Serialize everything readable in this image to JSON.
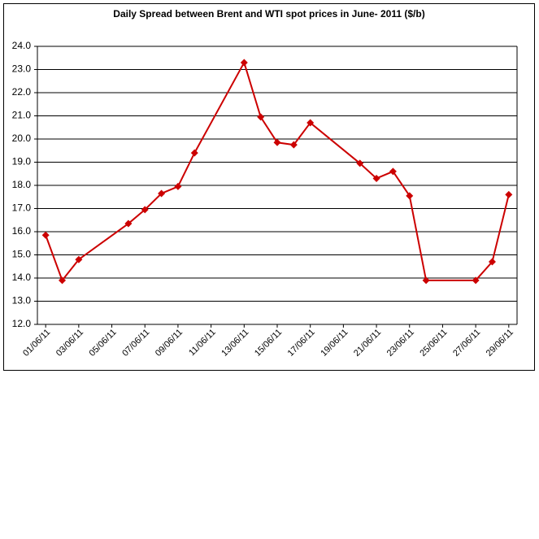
{
  "chart_data": {
    "type": "line",
    "title": "Daily Spread between Brent and WTI spot prices in June- 2011 ($/b)",
    "x": [
      "01/06/11",
      "02/06/11",
      "03/06/11",
      "06/06/11",
      "07/06/11",
      "08/06/11",
      "09/06/11",
      "10/06/11",
      "13/06/11",
      "14/06/11",
      "15/06/11",
      "16/06/11",
      "17/06/11",
      "20/06/11",
      "21/06/11",
      "22/06/11",
      "23/06/11",
      "24/06/11",
      "27/06/11",
      "28/06/11",
      "29/06/11"
    ],
    "values": [
      15.85,
      13.9,
      14.8,
      16.35,
      16.95,
      17.65,
      17.95,
      19.4,
      23.3,
      20.95,
      19.85,
      19.75,
      20.7,
      18.95,
      18.3,
      18.6,
      17.55,
      13.9,
      13.9,
      14.7,
      17.6
    ],
    "color": "#cc0000",
    "xlim": [
      "01/06/11",
      "29/06/11"
    ],
    "xticks": [
      "01/06/11",
      "03/06/11",
      "05/06/11",
      "07/06/11",
      "09/06/11",
      "11/06/11",
      "13/06/11",
      "15/06/11",
      "17/06/11",
      "19/06/11",
      "21/06/11",
      "23/06/11",
      "25/06/11",
      "27/06/11",
      "29/06/11"
    ],
    "ylim": [
      12,
      24
    ],
    "yticks": [
      {
        "value": 12,
        "label": "12.0"
      },
      {
        "value": 13,
        "label": "13.0"
      },
      {
        "value": 14,
        "label": "14.0"
      },
      {
        "value": 15,
        "label": "15.0"
      },
      {
        "value": 16,
        "label": "16.0"
      },
      {
        "value": 17,
        "label": "17.0"
      },
      {
        "value": 18,
        "label": "18.0"
      },
      {
        "value": 19,
        "label": "19.0"
      },
      {
        "value": 20,
        "label": "20.0"
      },
      {
        "value": 21,
        "label": "21.0"
      },
      {
        "value": 22,
        "label": "22.0"
      },
      {
        "value": 23,
        "label": "23.0"
      },
      {
        "value": 24,
        "label": "24.0"
      }
    ],
    "grid": true
  }
}
